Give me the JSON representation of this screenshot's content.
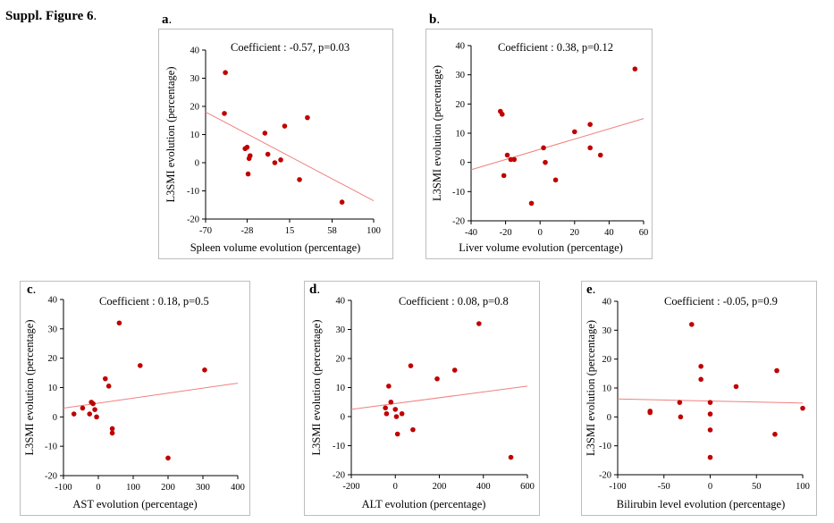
{
  "figure_title": {
    "bold": "Suppl. Figure 6",
    "suffix": "."
  },
  "colors": {
    "point": "#c00000",
    "fit_line": "#f08080",
    "axis": "#000000"
  },
  "chart_data": [
    {
      "id": "a",
      "label": "a",
      "type": "scatter",
      "annotation": "Coefficient : -0.57, p=0.03",
      "xlabel": "Spleen volume evolution (percentage)",
      "ylabel": "L3SMI evolution (percentage)",
      "xlim": [
        -70,
        100
      ],
      "ylim": [
        -20,
        40
      ],
      "xticks": [
        -70,
        -28,
        15,
        58,
        100
      ],
      "yticks": [
        -20,
        -10,
        0,
        10,
        20,
        30,
        40
      ],
      "points": [
        [
          -50,
          32
        ],
        [
          -51,
          17.5
        ],
        [
          -30,
          5
        ],
        [
          -28,
          5.5
        ],
        [
          -27,
          -4
        ],
        [
          -26,
          1.5
        ],
        [
          -25,
          2.5
        ],
        [
          -10,
          10.5
        ],
        [
          -7,
          3
        ],
        [
          0,
          0
        ],
        [
          6,
          1
        ],
        [
          10,
          13
        ],
        [
          33,
          16
        ],
        [
          25,
          -6
        ],
        [
          68,
          -14
        ]
      ],
      "fit": [
        [
          -70,
          18
        ],
        [
          100,
          -13.5
        ]
      ]
    },
    {
      "id": "b",
      "label": "b",
      "type": "scatter",
      "annotation": "Coefficient : 0.38, p=0.12",
      "xlabel": "Liver volume evolution (percentage)",
      "ylabel": "L3SMI evolution (percentage)",
      "xlim": [
        -40,
        60
      ],
      "ylim": [
        -20,
        40
      ],
      "xticks": [
        -40,
        -20,
        0,
        20,
        40,
        60
      ],
      "yticks": [
        -20,
        -10,
        0,
        10,
        20,
        30,
        40
      ],
      "points": [
        [
          -23,
          17.5
        ],
        [
          -22,
          16.5
        ],
        [
          -21,
          -4.5
        ],
        [
          -19,
          2.5
        ],
        [
          -17,
          1
        ],
        [
          -15,
          1
        ],
        [
          -5,
          -14
        ],
        [
          2,
          5
        ],
        [
          3,
          0
        ],
        [
          9,
          -6
        ],
        [
          20,
          10.5
        ],
        [
          29,
          13
        ],
        [
          29,
          5
        ],
        [
          35,
          2.5
        ],
        [
          55,
          32
        ]
      ],
      "fit": [
        [
          -40,
          -2.5
        ],
        [
          60,
          15
        ]
      ]
    },
    {
      "id": "c",
      "label": "c",
      "type": "scatter",
      "annotation": "Coefficient : 0.18, p=0.5",
      "xlabel": "AST evolution (percentage)",
      "ylabel": "L3SMI evolution (percentage)",
      "xlim": [
        -100,
        400
      ],
      "ylim": [
        -20,
        40
      ],
      "xticks": [
        -100,
        0,
        100,
        200,
        300,
        400
      ],
      "yticks": [
        -20,
        -10,
        0,
        10,
        20,
        30,
        40
      ],
      "points": [
        [
          -70,
          1
        ],
        [
          -45,
          3
        ],
        [
          -25,
          1
        ],
        [
          -20,
          5
        ],
        [
          -15,
          4.5
        ],
        [
          -10,
          2.5
        ],
        [
          -5,
          0
        ],
        [
          20,
          13
        ],
        [
          30,
          10.5
        ],
        [
          40,
          -4
        ],
        [
          40,
          -5.5
        ],
        [
          60,
          32
        ],
        [
          120,
          17.5
        ],
        [
          200,
          -14
        ],
        [
          305,
          16
        ]
      ],
      "fit": [
        [
          -100,
          3
        ],
        [
          400,
          11.5
        ]
      ]
    },
    {
      "id": "d",
      "label": "d",
      "type": "scatter",
      "annotation": "Coefficient : 0.08, p=0.8",
      "xlabel": "ALT evolution (percentage)",
      "ylabel": "L3SMI evolution (percentage)",
      "xlim": [
        -200,
        600
      ],
      "ylim": [
        -20,
        40
      ],
      "xticks": [
        -200,
        0,
        200,
        400,
        600
      ],
      "yticks": [
        -20,
        -10,
        0,
        10,
        20,
        30,
        40
      ],
      "points": [
        [
          -45,
          3
        ],
        [
          -40,
          1
        ],
        [
          -30,
          10.5
        ],
        [
          -20,
          5
        ],
        [
          0,
          2.5
        ],
        [
          5,
          0
        ],
        [
          10,
          -6
        ],
        [
          30,
          1
        ],
        [
          70,
          17.5
        ],
        [
          80,
          -4.5
        ],
        [
          190,
          13
        ],
        [
          270,
          16
        ],
        [
          380,
          32
        ],
        [
          525,
          -14
        ]
      ],
      "fit": [
        [
          -200,
          2.5
        ],
        [
          600,
          10.5
        ]
      ]
    },
    {
      "id": "e",
      "label": "e",
      "type": "scatter",
      "annotation": "Coefficient : -0.05, p=0.9",
      "xlabel": "Bilirubin level evolution (percentage)",
      "ylabel": "L3SMI evolution (percentage)",
      "xlim": [
        -100,
        100
      ],
      "ylim": [
        -20,
        40
      ],
      "xticks": [
        -100,
        -50,
        0,
        50,
        100
      ],
      "yticks": [
        -20,
        -10,
        0,
        10,
        20,
        30,
        40
      ],
      "points": [
        [
          -65,
          1.5
        ],
        [
          -65,
          2
        ],
        [
          -33,
          5
        ],
        [
          -32,
          0
        ],
        [
          -20,
          32
        ],
        [
          -10,
          17.5
        ],
        [
          -10,
          13
        ],
        [
          0,
          5
        ],
        [
          0,
          1
        ],
        [
          0,
          -4.5
        ],
        [
          0,
          -14
        ],
        [
          28,
          10.5
        ],
        [
          72,
          16
        ],
        [
          70,
          -6
        ],
        [
          100,
          3
        ]
      ],
      "fit": [
        [
          -100,
          6.2
        ],
        [
          100,
          4.8
        ]
      ]
    }
  ]
}
